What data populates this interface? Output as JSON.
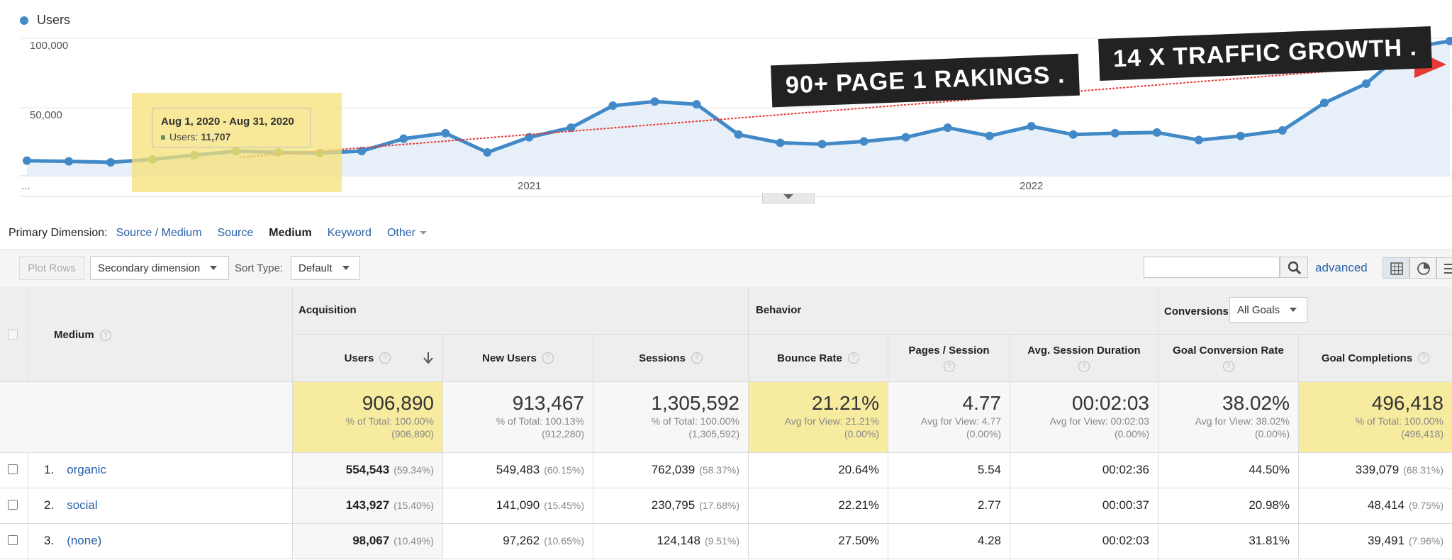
{
  "chart": {
    "legend": "Users",
    "y_ticks": [
      "100,000",
      "50,000"
    ],
    "x_ticks": [
      "...",
      "2021",
      "2022"
    ],
    "tooltip": {
      "date": "Aug 1, 2020 - Aug 31, 2020",
      "label": "Users:",
      "value": "11,707"
    },
    "banner_1": "90+ PAGE 1 RAKINGS .",
    "banner_2": "14 X TRAFFIC GROWTH .",
    "colors": {
      "series": "#4189c7",
      "trend": "#e53935",
      "highlight": "#f5e278",
      "banner": "#222222"
    }
  },
  "chart_data": {
    "type": "line",
    "series": [
      {
        "name": "Users",
        "values": [
          11000,
          10500,
          9800,
          12000,
          15000,
          18000,
          17000,
          16500,
          18000,
          27000,
          31000,
          17000,
          28000,
          35000,
          51000,
          54000,
          52000,
          30000,
          24000,
          23000,
          25000,
          28000,
          35000,
          29000,
          36000,
          30000,
          31000,
          31500,
          26000,
          29000,
          33000,
          53000,
          67000,
          93000,
          98000
        ]
      }
    ],
    "ylim": [
      0,
      100000
    ],
    "y_ticks": [
      "100,000",
      "50,000"
    ],
    "x_labels": [
      "...",
      "2021",
      "2022"
    ],
    "xlabel": "",
    "ylabel": "",
    "grid": true
  },
  "primary_dimension": {
    "label": "Primary Dimension:",
    "options": [
      "Source / Medium",
      "Source",
      "Medium",
      "Keyword",
      "Other"
    ],
    "active": "Medium"
  },
  "toolbar": {
    "plot_rows": "Plot Rows",
    "secondary": "Secondary dimension",
    "sort_label": "Sort Type:",
    "sort_value": "Default",
    "search_placeholder": "",
    "advanced": "advanced"
  },
  "table": {
    "medium_header": "Medium",
    "groups": {
      "acquisition": "Acquisition",
      "behavior": "Behavior",
      "conversions": "Conversions",
      "goal_select": "All Goals"
    },
    "columns": [
      "Users",
      "New Users",
      "Sessions",
      "Bounce Rate",
      "Pages / Session",
      "Avg. Session Duration",
      "Goal Conversion Rate",
      "Goal Completions"
    ],
    "totals": [
      {
        "big": "906,890",
        "l1": "% of Total: 100.00%",
        "l2": "(906,890)"
      },
      {
        "big": "913,467",
        "l1": "% of Total: 100.13%",
        "l2": "(912,280)"
      },
      {
        "big": "1,305,592",
        "l1": "% of Total: 100.00%",
        "l2": "(1,305,592)"
      },
      {
        "big": "21.21%",
        "l1": "Avg for View: 21.21%",
        "l2": "(0.00%)"
      },
      {
        "big": "4.77",
        "l1": "Avg for View: 4.77",
        "l2": "(0.00%)"
      },
      {
        "big": "00:02:03",
        "l1": "Avg for View: 00:02:03",
        "l2": "(0.00%)"
      },
      {
        "big": "38.02%",
        "l1": "Avg for View: 38.02%",
        "l2": "(0.00%)"
      },
      {
        "big": "496,418",
        "l1": "% of Total: 100.00%",
        "l2": "(496,418)"
      }
    ],
    "rows": [
      {
        "num": "1.",
        "medium": "organic",
        "users": "554,543",
        "users_pct": "(59.34%)",
        "new_users": "549,483",
        "new_users_pct": "(60.15%)",
        "sessions": "762,039",
        "sessions_pct": "(58.37%)",
        "bounce": "20.64%",
        "pages": "5.54",
        "duration": "00:02:36",
        "conv": "44.50%",
        "completions": "339,079",
        "completions_pct": "(68.31%)"
      },
      {
        "num": "2.",
        "medium": "social",
        "users": "143,927",
        "users_pct": "(15.40%)",
        "new_users": "141,090",
        "new_users_pct": "(15.45%)",
        "sessions": "230,795",
        "sessions_pct": "(17.68%)",
        "bounce": "22.21%",
        "pages": "2.77",
        "duration": "00:00:37",
        "conv": "20.98%",
        "completions": "48,414",
        "completions_pct": "(9.75%)"
      },
      {
        "num": "3.",
        "medium": "(none)",
        "users": "98,067",
        "users_pct": "(10.49%)",
        "new_users": "97,262",
        "new_users_pct": "(10.65%)",
        "sessions": "124,148",
        "sessions_pct": "(9.51%)",
        "bounce": "27.50%",
        "pages": "4.28",
        "duration": "00:02:03",
        "conv": "31.81%",
        "completions": "39,491",
        "completions_pct": "(7.96%)"
      }
    ]
  }
}
